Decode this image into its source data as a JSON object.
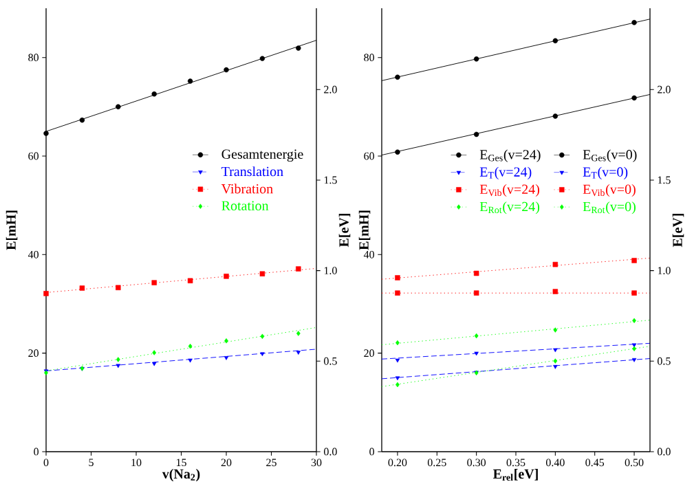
{
  "chart_data": [
    {
      "type": "scatter",
      "xlabel": "v(Na$_{2}$)",
      "ylabel": "E[mH]",
      "y2label": "E[eV]",
      "legend": "right",
      "x": [
        0,
        4,
        8,
        12,
        16,
        20,
        24,
        28
      ],
      "xlim": [
        0,
        30
      ],
      "xticks": [
        0,
        5,
        10,
        15,
        20,
        25,
        30
      ],
      "ylim": [
        0,
        90
      ],
      "yticks": [
        0,
        20,
        40,
        60,
        80
      ],
      "y2lim": [
        0,
        2.449
      ],
      "y2ticks": [
        {
          "value": 0,
          "label": "0.0"
        },
        {
          "value": 0.5,
          "label": "0.5"
        },
        {
          "value": 1,
          "label": "1.0"
        },
        {
          "value": 1.5,
          "label": "1.5"
        },
        {
          "value": 2,
          "label": "2.0"
        }
      ],
      "series": [
        {
          "name": "Gesamtenergie",
          "color": "#000000",
          "marker": "circle",
          "line_style": "solid",
          "values": [
            64.6,
            67.3,
            70.0,
            72.6,
            75.2,
            77.5,
            79.8,
            81.9
          ]
        },
        {
          "name": "Translation",
          "color": "#0000ff",
          "marker": "triangle",
          "line_style": "dashed",
          "values": [
            16.4,
            16.9,
            17.5,
            17.9,
            18.6,
            19.1,
            19.9,
            20.2
          ]
        },
        {
          "name": "Vibration",
          "color": "#ff0000",
          "marker": "square",
          "line_style": "dotted",
          "values": [
            32.1,
            33.2,
            33.3,
            34.3,
            34.7,
            35.6,
            36.1,
            37.1
          ]
        },
        {
          "name": "Rotation",
          "color": "#00ff00",
          "marker": "diamond",
          "line_style": "dotted",
          "values": [
            16.0,
            16.9,
            18.7,
            20.1,
            21.4,
            22.5,
            23.4,
            24.0
          ]
        },
        {
          "type": "line",
          "color": "#000000",
          "line_style": "solid",
          "x": [
            0,
            30
          ],
          "values": [
            65.0,
            83.5
          ]
        },
        {
          "type": "line",
          "color": "#0000ff",
          "line_style": "dashed",
          "x": [
            0,
            30
          ],
          "values": [
            16.4,
            20.8
          ]
        },
        {
          "type": "line",
          "color": "#ff0000",
          "line_style": "dotted",
          "x": [
            0,
            30
          ],
          "values": [
            32.3,
            37.2
          ]
        },
        {
          "type": "line",
          "color": "#00ff00",
          "line_style": "dotted",
          "x": [
            0,
            30
          ],
          "values": [
            16.4,
            25.2
          ]
        }
      ]
    },
    {
      "type": "scatter",
      "xlabel": "E$_{rel}$[eV]",
      "ylabel": "E[mH]",
      "y2label": "E[eV]",
      "legend": "right",
      "x": [
        0.2,
        0.3,
        0.4,
        0.5
      ],
      "xlim": [
        0.18,
        0.52
      ],
      "xticks": [
        {
          "value": 0.2,
          "label": "0.20"
        },
        {
          "value": 0.25,
          "label": "0.25"
        },
        {
          "value": 0.3,
          "label": "0.30"
        },
        {
          "value": 0.35,
          "label": "0.35"
        },
        {
          "value": 0.4,
          "label": "0.40"
        },
        {
          "value": 0.45,
          "label": "0.45"
        },
        {
          "value": 0.5,
          "label": "0.50"
        }
      ],
      "ylim": [
        0,
        90
      ],
      "yticks": [
        0,
        20,
        40,
        60,
        80
      ],
      "y2lim": [
        0,
        2.449
      ],
      "y2ticks": [
        {
          "value": 0,
          "label": "0.0"
        },
        {
          "value": 0.5,
          "label": "0.5"
        },
        {
          "value": 1,
          "label": "1.0"
        },
        {
          "value": 1.5,
          "label": "1.5"
        },
        {
          "value": 2,
          "label": "2.0"
        }
      ],
      "series": [
        {
          "name": "E$_{Ges}$(v=24)",
          "color": "#000000",
          "marker": "circle",
          "line_style": "solid",
          "values": [
            76.0,
            79.7,
            83.4,
            87.1
          ]
        },
        {
          "name": "E$_{Ges}$(v=0)",
          "color": "#000000",
          "marker": "circle",
          "line_style": "solid",
          "values": [
            60.8,
            64.4,
            68.1,
            71.8
          ]
        },
        {
          "name": "E$_{T}$(v=24)",
          "color": "#0000ff",
          "marker": "triangle",
          "line_style": "dashed",
          "values": [
            18.6,
            20.0,
            20.7,
            21.7
          ]
        },
        {
          "name": "E$_{T}$(v=0)",
          "color": "#0000ff",
          "marker": "triangle",
          "line_style": "dashed",
          "values": [
            15.0,
            16.1,
            17.3,
            18.7
          ]
        },
        {
          "name": "E$_{Vib}$(v=24)",
          "color": "#ff0000",
          "marker": "square",
          "line_style": "dotted",
          "values": [
            35.3,
            36.2,
            38.0,
            38.8
          ]
        },
        {
          "name": "E$_{Vib}$(v=0)",
          "color": "#ff0000",
          "marker": "square",
          "line_style": "dotted",
          "values": [
            32.2,
            32.2,
            32.5,
            32.2
          ]
        },
        {
          "name": "E$_{Rot}$(v=24)",
          "color": "#00ff00",
          "marker": "diamond",
          "line_style": "dotted",
          "values": [
            22.1,
            23.5,
            24.7,
            26.6
          ]
        },
        {
          "name": "E$_{Rot}$(v=0)",
          "color": "#00ff00",
          "marker": "diamond",
          "line_style": "dotted",
          "values": [
            13.6,
            16.0,
            18.4,
            20.9
          ]
        },
        {
          "type": "line",
          "color": "#000000",
          "line_style": "solid",
          "x": [
            0.18,
            0.52
          ],
          "values": [
            75.3,
            87.8
          ]
        },
        {
          "type": "line",
          "color": "#000000",
          "line_style": "solid",
          "x": [
            0.18,
            0.52
          ],
          "values": [
            60.2,
            72.5
          ]
        },
        {
          "type": "line",
          "color": "#0000ff",
          "line_style": "dashed",
          "x": [
            0.18,
            0.52
          ],
          "values": [
            18.8,
            22.0
          ]
        },
        {
          "type": "line",
          "color": "#0000ff",
          "line_style": "dashed",
          "x": [
            0.18,
            0.52
          ],
          "values": [
            14.8,
            18.9
          ]
        },
        {
          "type": "line",
          "color": "#ff0000",
          "line_style": "dotted",
          "x": [
            0.18,
            0.52
          ],
          "values": [
            35.0,
            39.3
          ]
        },
        {
          "type": "line",
          "color": "#ff0000",
          "line_style": "dotted",
          "x": [
            0.18,
            0.52
          ],
          "values": [
            32.2,
            32.2
          ]
        },
        {
          "type": "line",
          "color": "#00ff00",
          "line_style": "dotted",
          "x": [
            0.18,
            0.52
          ],
          "values": [
            21.7,
            26.7
          ]
        },
        {
          "type": "line",
          "color": "#00ff00",
          "line_style": "dotted",
          "x": [
            0.18,
            0.52
          ],
          "values": [
            13.2,
            21.4
          ]
        }
      ]
    }
  ]
}
